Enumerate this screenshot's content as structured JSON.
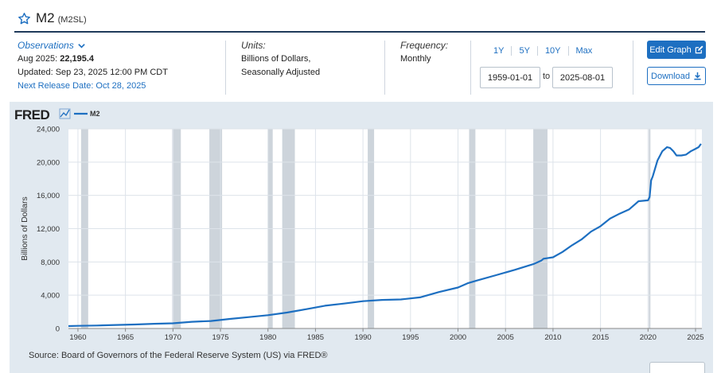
{
  "header": {
    "title": "M2",
    "series_id": "(M2SL)"
  },
  "meta": {
    "observations_label": "Observations",
    "obs_date": "Aug 2025:",
    "obs_value": "22,195.4",
    "updated": "Updated: Sep 23, 2025 12:00 PM CDT",
    "next_release": "Next Release Date: Oct 28, 2025",
    "units_label": "Units:",
    "units_line1": "Billions of Dollars,",
    "units_line2": "Seasonally Adjusted",
    "frequency_label": "Frequency:",
    "frequency_value": "Monthly"
  },
  "controls": {
    "ranges": [
      "1Y",
      "5Y",
      "10Y",
      "Max"
    ],
    "start_date": "1959-01-01",
    "end_date": "2025-08-01",
    "to_label": "to",
    "edit_graph": "Edit Graph",
    "download": "Download"
  },
  "logo": {
    "text": "FRED"
  },
  "source": "Source: Board of Governors of the Federal Reserve System (US) via FRED®",
  "colors": {
    "line": "#1d6fc1",
    "recession": "#c4ccd5",
    "panel": "#e1e9f0",
    "accent": "#1d6fc1"
  },
  "chart_data": {
    "type": "line",
    "ylabel": "Billions of Dollars",
    "xlabel": "",
    "ylim": [
      0,
      24000
    ],
    "xlim": [
      1959,
      2025.67
    ],
    "x_ticks": [
      1960,
      1965,
      1970,
      1975,
      1980,
      1985,
      1990,
      1995,
      2000,
      2005,
      2010,
      2015,
      2020,
      2025
    ],
    "y_ticks": [
      0,
      4000,
      8000,
      12000,
      16000,
      20000,
      24000
    ],
    "y_tick_labels": [
      "0",
      "4,000",
      "8,000",
      "12,000",
      "16,000",
      "20,000",
      "24,000"
    ],
    "grid": true,
    "legend": "top-left",
    "series": [
      {
        "name": "M2",
        "x": [
          1959,
          1960,
          1962,
          1964,
          1966,
          1968,
          1970,
          1972,
          1974,
          1976,
          1978,
          1980,
          1982,
          1984,
          1986,
          1988,
          1990,
          1992,
          1994,
          1996,
          1998,
          2000,
          2001,
          2002,
          2004,
          2006,
          2008,
          2008.75,
          2009,
          2010,
          2011,
          2012,
          2013,
          2014,
          2015,
          2016,
          2017,
          2018,
          2019,
          2020,
          2020.17,
          2020.33,
          2020.5,
          2021,
          2021.5,
          2022,
          2022.33,
          2022.67,
          2023,
          2023.5,
          2024,
          2024.5,
          2025,
          2025.33,
          2025.58
        ],
        "y": [
          286,
          313,
          350,
          425,
          480,
          565,
          626,
          802,
          902,
          1152,
          1365,
          1600,
          1910,
          2310,
          2730,
          2990,
          3279,
          3430,
          3490,
          3740,
          4380,
          4920,
          5430,
          5770,
          6410,
          7060,
          7760,
          8150,
          8390,
          8560,
          9200,
          10000,
          10700,
          11650,
          12300,
          13200,
          13800,
          14300,
          15300,
          15400,
          15800,
          17800,
          18300,
          20200,
          21300,
          21800,
          21700,
          21300,
          20800,
          20800,
          20900,
          21300,
          21600,
          21800,
          22195
        ]
      }
    ],
    "recessions": [
      [
        1960.33,
        1961.08
      ],
      [
        1969.92,
        1970.83
      ],
      [
        1973.83,
        1975.17
      ],
      [
        1980.0,
        1980.5
      ],
      [
        1981.5,
        1982.83
      ],
      [
        1990.5,
        1991.17
      ],
      [
        2001.17,
        2001.83
      ],
      [
        2007.92,
        2009.42
      ],
      [
        2020.08,
        2020.25
      ]
    ]
  }
}
